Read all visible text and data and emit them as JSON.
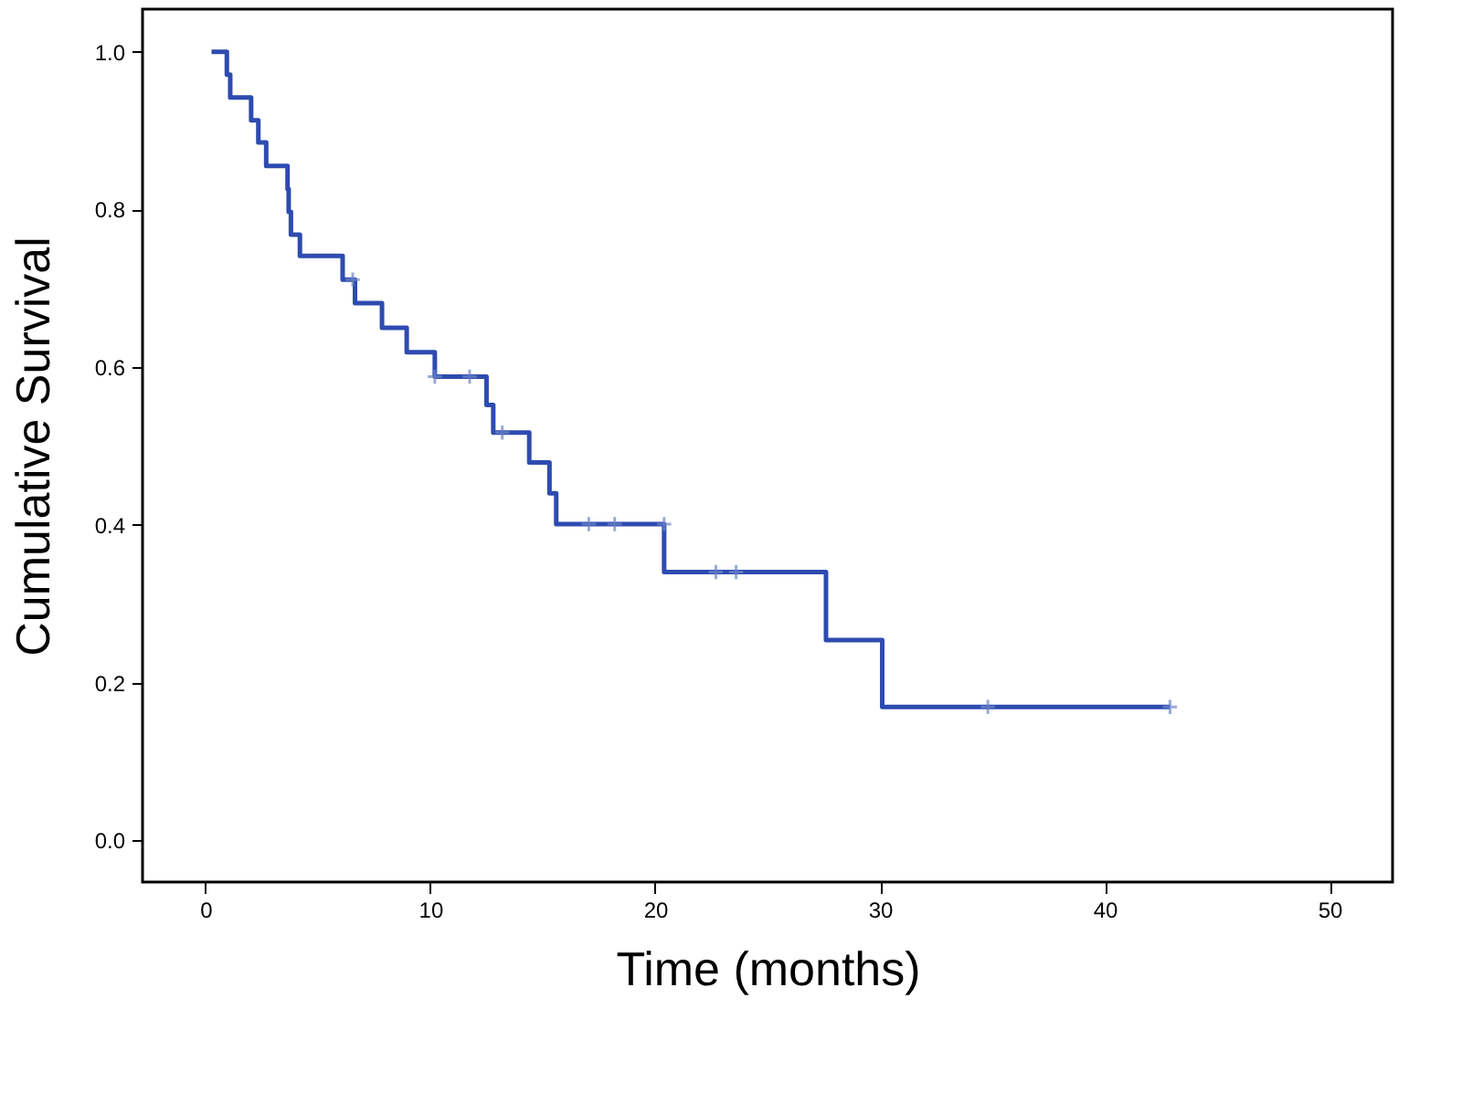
{
  "chart_data": {
    "type": "step",
    "xlabel": "Time (months)",
    "ylabel": "Cumulative Survival",
    "xlim": [
      -2.8,
      52.8
    ],
    "ylim": [
      -0.053,
      1.054
    ],
    "xticks": [
      0,
      10,
      20,
      30,
      40,
      50
    ],
    "yticks": [
      {
        "value": 0,
        "label": "0.0"
      },
      {
        "value": 0.2,
        "label": "0.2"
      },
      {
        "value": 0.4,
        "label": "0.4"
      },
      {
        "value": 0.6,
        "label": "0.6"
      },
      {
        "value": 0.8,
        "label": "0.8"
      },
      {
        "value": 1,
        "label": "1.0"
      }
    ],
    "series": [
      {
        "color": "#2e4bb0",
        "marker": "none",
        "line_style": "solid",
        "x": [
          0.27,
          0.95,
          1.1,
          2.03,
          2.35,
          2.7,
          3.65,
          3.7,
          3.8,
          4.2,
          6.1,
          6.65,
          7.85,
          8.95,
          10.2,
          12.5,
          12.8,
          14.4,
          15.3,
          15.6,
          20.4,
          27.6,
          30.1,
          42.9
        ],
        "values": [
          1.0,
          0.971,
          0.942,
          0.913,
          0.885,
          0.855,
          0.826,
          0.797,
          0.768,
          0.741,
          0.711,
          0.681,
          0.65,
          0.619,
          0.588,
          0.552,
          0.517,
          0.479,
          0.44,
          0.401,
          0.34,
          0.254,
          0.169,
          0.169
        ]
      },
      {
        "type": "scatter",
        "color": "#6f86c8",
        "marker": "cross",
        "x": [
          6.55,
          10.2,
          11.75,
          13.2,
          17.05,
          18.2,
          20.4,
          22.7,
          23.6,
          34.8,
          42.9
        ],
        "values": [
          0.711,
          0.588,
          0.588,
          0.517,
          0.401,
          0.401,
          0.401,
          0.34,
          0.34,
          0.169,
          0.169
        ]
      }
    ]
  }
}
